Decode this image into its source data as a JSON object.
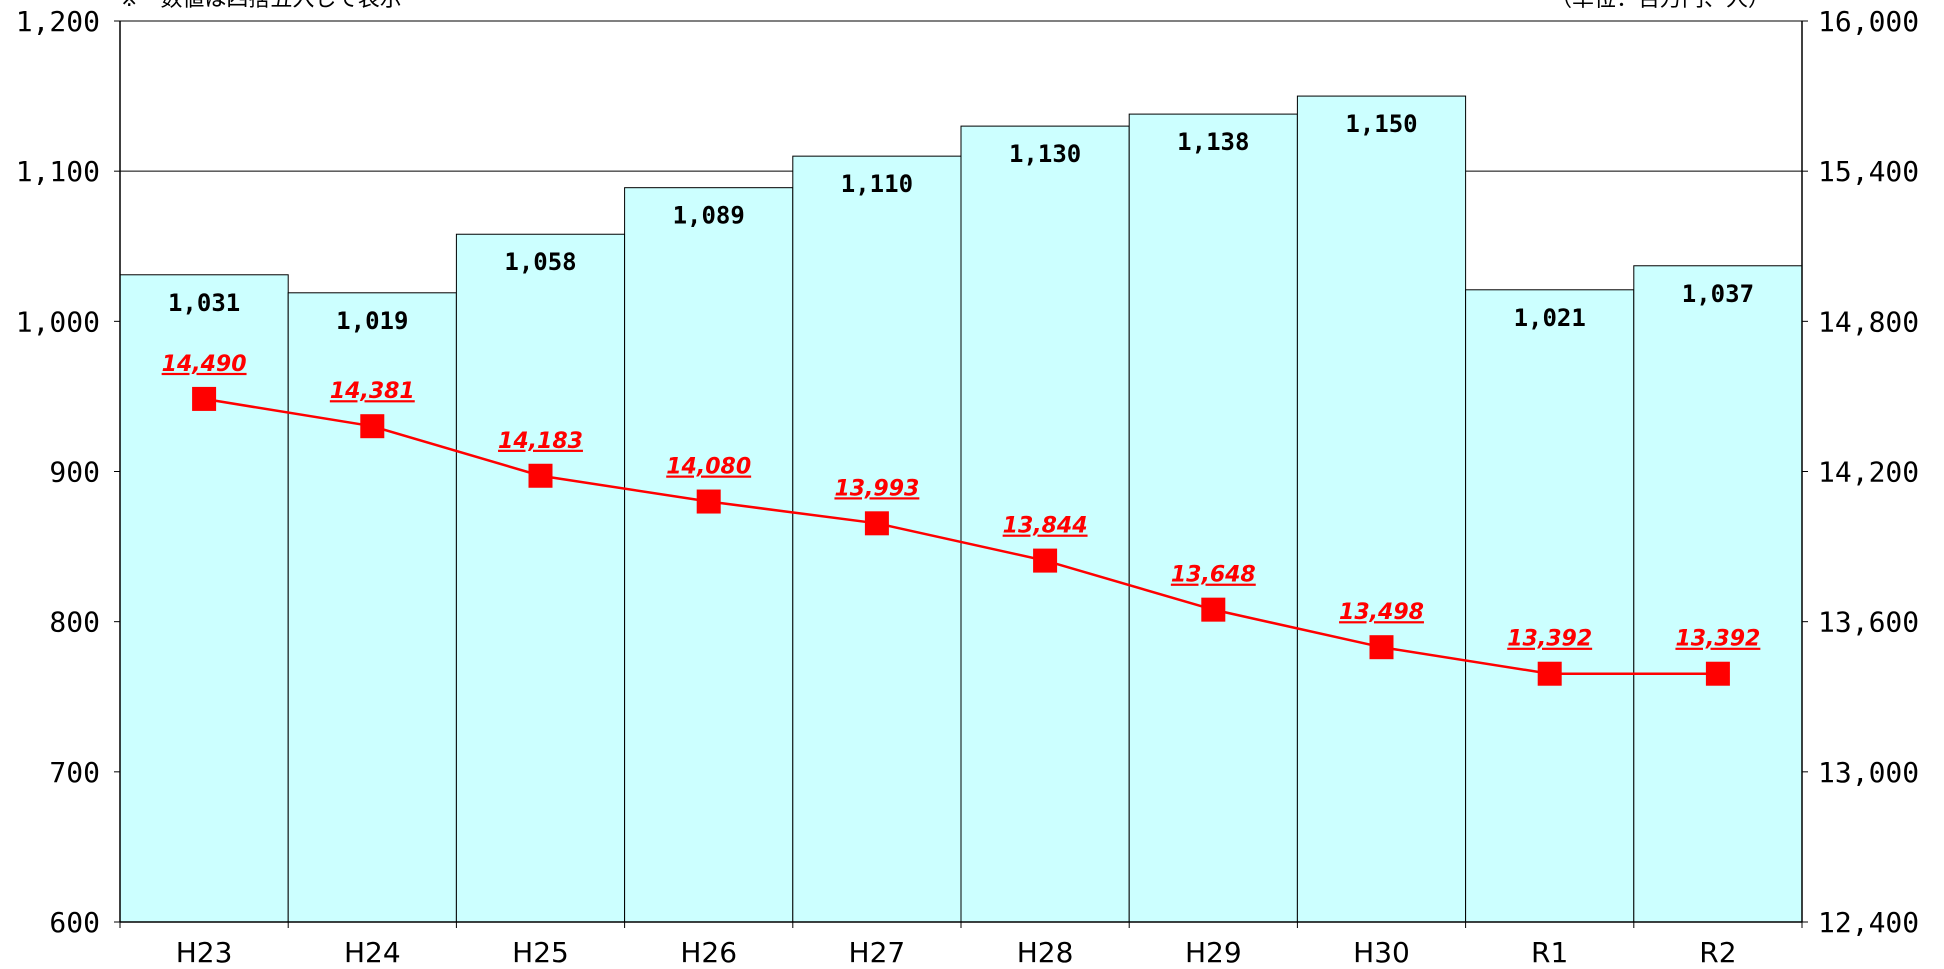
{
  "chart_data": {
    "type": "bar",
    "note": "※　数値は四捨五入して表示",
    "unit_note": "（単位：百万円、人）",
    "categories": [
      "H23",
      "H24",
      "H25",
      "H26",
      "H27",
      "H28",
      "H29",
      "H30",
      "R1",
      "R2"
    ],
    "series": [
      {
        "type": "bar",
        "axis": "left",
        "color": "#ccffff",
        "values": [
          1031,
          1019,
          1058,
          1089,
          1110,
          1130,
          1138,
          1150,
          1021,
          1037
        ],
        "labels": [
          "1,031",
          "1,019",
          "1,058",
          "1,089",
          "1,110",
          "1,130",
          "1,138",
          "1,150",
          "1,021",
          "1,037"
        ]
      },
      {
        "type": "line",
        "axis": "right",
        "color": "#ff0000",
        "marker": "square",
        "values": [
          14490,
          14381,
          14183,
          14080,
          13993,
          13844,
          13648,
          13498,
          13392,
          13392
        ],
        "labels": [
          "14,490",
          "14,381",
          "14,183",
          "14,080",
          "13,993",
          "13,844",
          "13,648",
          "13,498",
          "13,392",
          "13,392"
        ]
      }
    ],
    "y_left": {
      "range": [
        600,
        1200
      ],
      "ticks": [
        600,
        700,
        800,
        900,
        1000,
        1100,
        1200
      ],
      "tick_labels": [
        "600",
        "700",
        "800",
        "900",
        "1,000",
        "1,100",
        "1,200"
      ]
    },
    "y_right": {
      "range": [
        12400,
        16000
      ],
      "ticks": [
        12400,
        13000,
        13600,
        14200,
        14800,
        15400,
        16000
      ],
      "tick_labels": [
        "12,400",
        "13,000",
        "13,600",
        "14,200",
        "14,800",
        "15,400",
        "16,000"
      ]
    },
    "grid": "horizontal at 1,000 and 1,100",
    "gridlines": [
      1000,
      1100
    ],
    "legend": "none"
  }
}
